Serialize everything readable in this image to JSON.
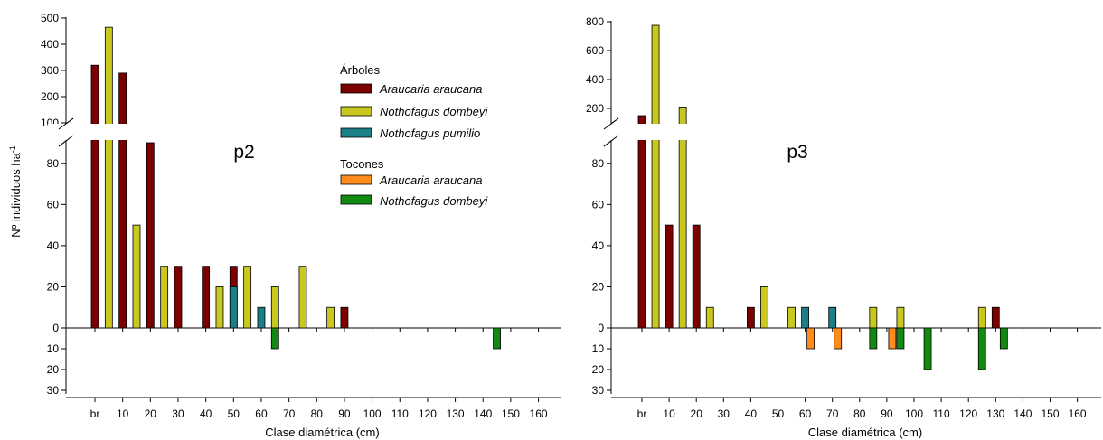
{
  "colors": {
    "araucaria_tree": "#7d0000",
    "dombeyi_tree": "#c8c81f",
    "pumilio_tree": "#1a7f86",
    "araucaria_stump": "#ff8c1a",
    "dombeyi_stump": "#128a12"
  },
  "legend": {
    "trees_heading": "Árboles",
    "trees": [
      "Araucaria araucana",
      "Nothofagus dombeyi",
      "Nothofagus pumilio"
    ],
    "stumps_heading": "Tocones",
    "stumps": [
      "Araucaria araucana",
      "Nothofagus dombeyi"
    ]
  },
  "y_axis_label": "Nº individuos ha",
  "y_axis_label_sup": "-1",
  "chart_data": [
    {
      "type": "bar",
      "panel_label": "p2",
      "xlabel": "Clase diamétrica (cm)",
      "ylabel": "Nº individuos ha-1",
      "x_tick_labels": [
        "br",
        "10",
        "20",
        "30",
        "40",
        "50",
        "60",
        "70",
        "80",
        "90",
        "100",
        "110",
        "120",
        "130",
        "140",
        "150",
        "160"
      ],
      "y_ticks_upper": [
        100,
        200,
        300,
        400,
        500
      ],
      "y_ticks_lower": [
        0,
        20,
        40,
        60,
        80
      ],
      "y_ticks_negative": [
        10,
        20,
        30
      ],
      "y_break": [
        90,
        100
      ],
      "ylim_upper": [
        100,
        500
      ],
      "ylim_lower": [
        0,
        90
      ],
      "ylim_negative": [
        -30,
        0
      ],
      "series": [
        {
          "name": "Araucaria araucana",
          "group": "Árboles",
          "points": [
            [
              "0",
              320
            ],
            [
              "10",
              290
            ],
            [
              "20",
              90
            ],
            [
              "30",
              30
            ],
            [
              "40",
              30
            ],
            [
              "50",
              30
            ],
            [
              "90",
              10
            ]
          ]
        },
        {
          "name": "Nothofagus dombeyi",
          "group": "Árboles",
          "points": [
            [
              "5",
              465
            ],
            [
              "15",
              50
            ],
            [
              "25",
              30
            ],
            [
              "45",
              20
            ],
            [
              "55",
              30
            ],
            [
              "65",
              20
            ],
            [
              "75",
              30
            ],
            [
              "85",
              10
            ]
          ]
        },
        {
          "name": "Nothofagus pumilio",
          "group": "Árboles",
          "points": [
            [
              "50",
              20
            ],
            [
              "60",
              10
            ]
          ]
        },
        {
          "name": "Araucaria araucana",
          "group": "Tocones",
          "points": []
        },
        {
          "name": "Nothofagus dombeyi",
          "group": "Tocones",
          "points": [
            [
              "65",
              -10
            ],
            [
              "145",
              -10
            ]
          ]
        }
      ]
    },
    {
      "type": "bar",
      "panel_label": "p3",
      "xlabel": "Clase diamétrica (cm)",
      "ylabel": "",
      "x_tick_labels": [
        "br",
        "10",
        "20",
        "30",
        "40",
        "50",
        "60",
        "70",
        "80",
        "90",
        "100",
        "110",
        "120",
        "130",
        "140",
        "150",
        "160"
      ],
      "y_ticks_upper": [
        200,
        400,
        600,
        800
      ],
      "y_ticks_lower": [
        0,
        20,
        40,
        60,
        80
      ],
      "y_ticks_negative": [
        10,
        20,
        30
      ],
      "y_break": [
        90,
        100
      ],
      "ylim_upper": [
        100,
        800
      ],
      "ylim_lower": [
        0,
        90
      ],
      "ylim_negative": [
        -30,
        0
      ],
      "series": [
        {
          "name": "Araucaria araucana",
          "group": "Árboles",
          "points": [
            [
              "0",
              150
            ],
            [
              "10",
              50
            ],
            [
              "20",
              50
            ],
            [
              "40",
              10
            ],
            [
              "130",
              10
            ]
          ]
        },
        {
          "name": "Nothofagus dombeyi",
          "group": "Árboles",
          "points": [
            [
              "5",
              775
            ],
            [
              "15",
              210
            ],
            [
              "25",
              10
            ],
            [
              "45",
              20
            ],
            [
              "55",
              10
            ],
            [
              "85",
              10
            ],
            [
              "95",
              10
            ],
            [
              "125",
              10
            ]
          ]
        },
        {
          "name": "Nothofagus pumilio",
          "group": "Árboles",
          "points": [
            [
              "60",
              10
            ],
            [
              "70",
              10
            ]
          ]
        },
        {
          "name": "Araucaria araucana",
          "group": "Tocones",
          "points": [
            [
              "62",
              -10
            ],
            [
              "72",
              -10
            ],
            [
              "92",
              -10
            ]
          ]
        },
        {
          "name": "Nothofagus dombeyi",
          "group": "Tocones",
          "points": [
            [
              "85",
              -10
            ],
            [
              "95",
              -10
            ],
            [
              "105",
              -20
            ],
            [
              "125",
              -20
            ],
            [
              "133",
              -10
            ]
          ]
        }
      ]
    }
  ]
}
